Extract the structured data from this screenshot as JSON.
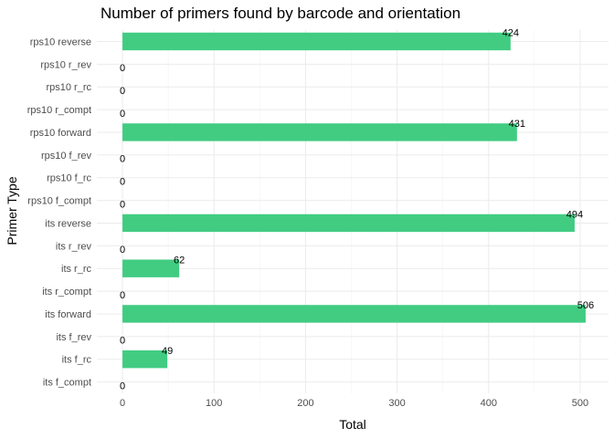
{
  "chart_data": {
    "type": "bar",
    "orientation": "horizontal",
    "title": "Number of primers found by barcode and orientation",
    "xlabel": "Total",
    "ylabel": "Primer Type",
    "xlim": [
      -28,
      531
    ],
    "x_ticks": [
      0,
      100,
      200,
      300,
      400,
      500
    ],
    "grid": true,
    "bar_color": "#41CC82",
    "categories": [
      "rps10 reverse",
      "rps10 r_rev",
      "rps10 r_rc",
      "rps10 r_compt",
      "rps10 forward",
      "rps10 f_rev",
      "rps10 f_rc",
      "rps10 f_compt",
      "its reverse",
      "its r_rev",
      "its r_rc",
      "its r_compt",
      "its forward",
      "its f_rev",
      "its f_rc",
      "its f_compt"
    ],
    "values": [
      424,
      0,
      0,
      0,
      431,
      0,
      0,
      0,
      494,
      0,
      62,
      0,
      506,
      0,
      49,
      0
    ]
  }
}
